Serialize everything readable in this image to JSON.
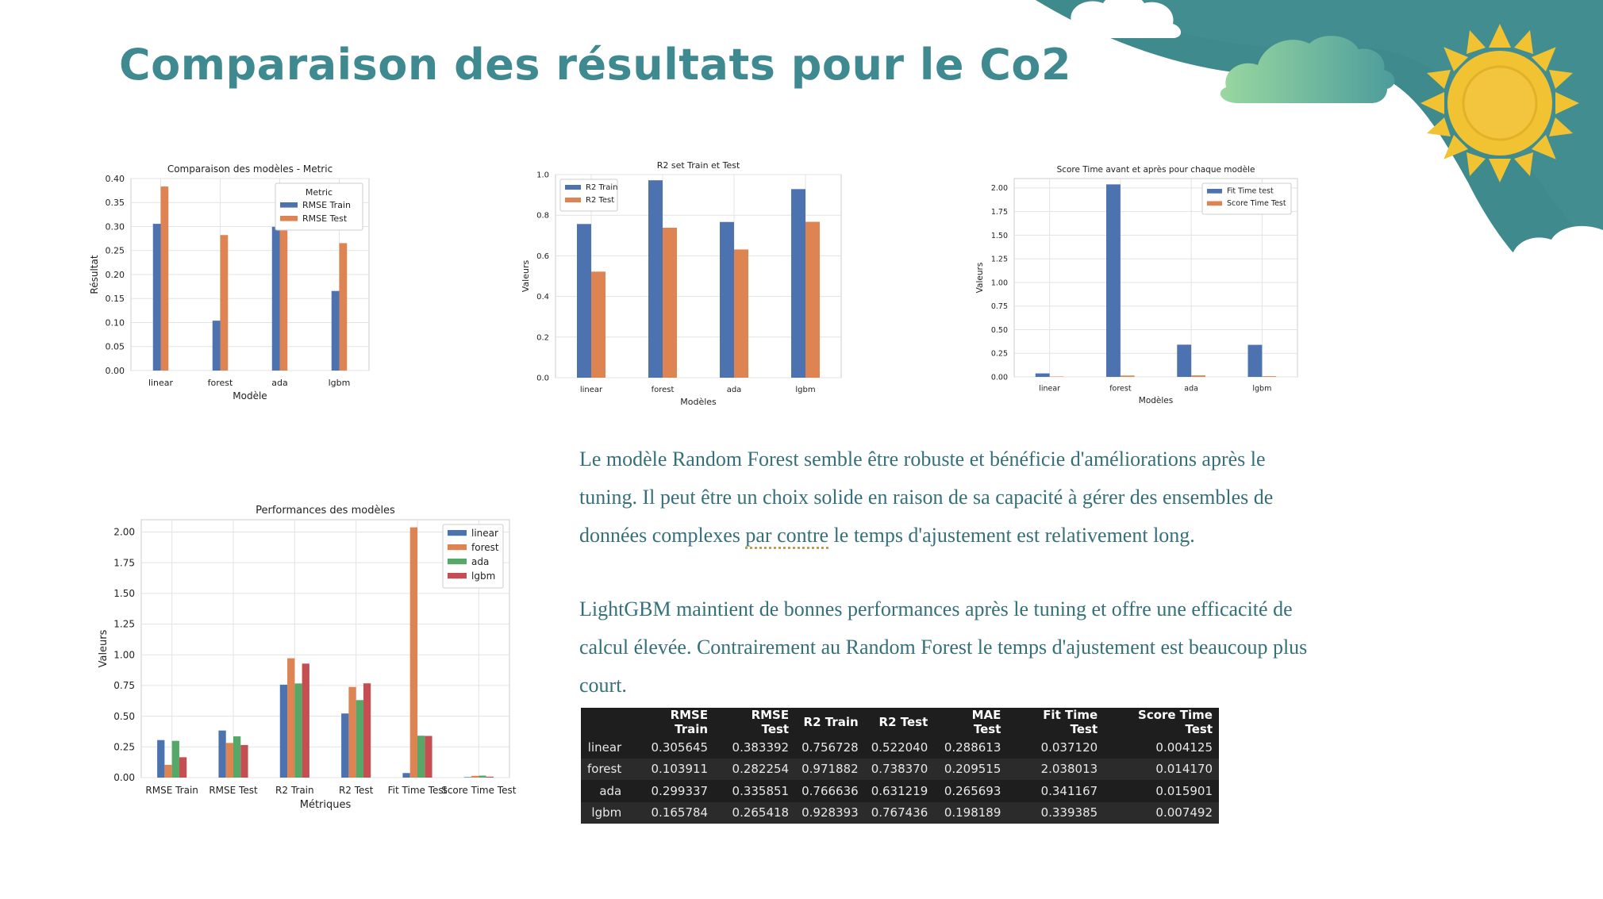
{
  "slide": {
    "title": "Comparaison des résultats pour le Co2",
    "paragraph1_a": "Le modèle Random Forest semble être robuste et bénéficie d'améliorations après le tuning. Il peut être un choix solide en raison de sa capacité à gérer des ensembles de données complexes ",
    "paragraph1_u": "par contre",
    "paragraph1_b": " le temps d'ajustement est relativement long.",
    "paragraph2": "LightGBM maintient de bonnes performances après le tuning et offre une efficacité de calcul élevée. Contrairement au Random Forest le temps d'ajustement est beaucoup plus court."
  },
  "colors": {
    "title": "#3f8a90",
    "text": "#35707a",
    "blue": "#4c72b0",
    "orange": "#dd8452",
    "green": "#55a868",
    "red": "#c44e52",
    "teal": "#3e8a8c",
    "sun": "#f1c232"
  },
  "icons": [
    "cloud-icon",
    "sun-icon"
  ],
  "chart_data": [
    {
      "type": "bar",
      "title": "Comparaison des modèles  - Metric",
      "xlabel": "Modèle",
      "ylabel": "Résultat",
      "categories": [
        "linear",
        "forest",
        "ada",
        "lgbm"
      ],
      "ylim": [
        0,
        0.4
      ],
      "yticks": [
        "0.00",
        "0.05",
        "0.10",
        "0.15",
        "0.20",
        "0.25",
        "0.30",
        "0.35",
        "0.40"
      ],
      "legend_title": "Metric",
      "legend_position": "top-right",
      "grid": true,
      "series": [
        {
          "name": "RMSE Train",
          "values": [
            0.305645,
            0.103911,
            0.299337,
            0.165784
          ]
        },
        {
          "name": "RMSE Test",
          "values": [
            0.383392,
            0.282254,
            0.335851,
            0.265418
          ]
        }
      ]
    },
    {
      "type": "bar",
      "title": "R2 set Train et Test",
      "xlabel": "Modèles",
      "ylabel": "Valeurs",
      "categories": [
        "linear",
        "forest",
        "ada",
        "lgbm"
      ],
      "ylim": [
        0,
        1.0
      ],
      "yticks": [
        "0.0",
        "0.2",
        "0.4",
        "0.6",
        "0.8",
        "1.0"
      ],
      "legend_position": "top-left",
      "grid": true,
      "series": [
        {
          "name": "R2 Train",
          "values": [
            0.756728,
            0.971882,
            0.766636,
            0.928393
          ]
        },
        {
          "name": "R2 Test",
          "values": [
            0.52204,
            0.73837,
            0.631219,
            0.767436
          ]
        }
      ]
    },
    {
      "type": "bar",
      "title": "Score Time avant et après pour chaque modèle",
      "xlabel": "Modèles",
      "ylabel": "Valeurs",
      "categories": [
        "linear",
        "forest",
        "ada",
        "lgbm"
      ],
      "ylim": [
        0,
        2.1
      ],
      "yticks": [
        "0.00",
        "0.25",
        "0.50",
        "0.75",
        "1.00",
        "1.25",
        "1.50",
        "1.75",
        "2.00"
      ],
      "legend_position": "top-right",
      "grid": true,
      "series": [
        {
          "name": "Fit Time test",
          "values": [
            0.03712,
            2.038013,
            0.341167,
            0.339385
          ]
        },
        {
          "name": "Score Time Test",
          "values": [
            0.004125,
            0.01417,
            0.015901,
            0.007492
          ]
        }
      ]
    },
    {
      "type": "bar",
      "title": "Performances des modèles",
      "xlabel": "Métriques",
      "ylabel": "Valeurs",
      "categories": [
        "RMSE Train",
        "RMSE Test",
        "R2 Train",
        "R2 Test",
        "Fit Time Test",
        "Score Time Test"
      ],
      "ylim": [
        0,
        2.1
      ],
      "yticks": [
        "0.00",
        "0.25",
        "0.50",
        "0.75",
        "1.00",
        "1.25",
        "1.50",
        "1.75",
        "2.00"
      ],
      "legend_position": "top-right",
      "grid": true,
      "series": [
        {
          "name": "linear",
          "values": [
            0.305645,
            0.383392,
            0.756728,
            0.52204,
            0.03712,
            0.004125
          ]
        },
        {
          "name": "forest",
          "values": [
            0.103911,
            0.282254,
            0.971882,
            0.73837,
            2.038013,
            0.01417
          ]
        },
        {
          "name": "ada",
          "values": [
            0.299337,
            0.335851,
            0.766636,
            0.631219,
            0.341167,
            0.015901
          ]
        },
        {
          "name": "lgbm",
          "values": [
            0.165784,
            0.265418,
            0.928393,
            0.767436,
            0.339385,
            0.007492
          ]
        }
      ]
    },
    {
      "type": "table",
      "columns": [
        "",
        "RMSE Train",
        "RMSE Test",
        "R2 Train",
        "R2 Test",
        "MAE Test",
        "Fit Time Test",
        "Score Time Test"
      ],
      "rows": [
        [
          "linear",
          "0.305645",
          "0.383392",
          "0.756728",
          "0.522040",
          "0.288613",
          "0.037120",
          "0.004125"
        ],
        [
          "forest",
          "0.103911",
          "0.282254",
          "0.971882",
          "0.738370",
          "0.209515",
          "2.038013",
          "0.014170"
        ],
        [
          "ada",
          "0.299337",
          "0.335851",
          "0.766636",
          "0.631219",
          "0.265693",
          "0.341167",
          "0.015901"
        ],
        [
          "lgbm",
          "0.165784",
          "0.265418",
          "0.928393",
          "0.767436",
          "0.198189",
          "0.339385",
          "0.007492"
        ]
      ]
    }
  ]
}
